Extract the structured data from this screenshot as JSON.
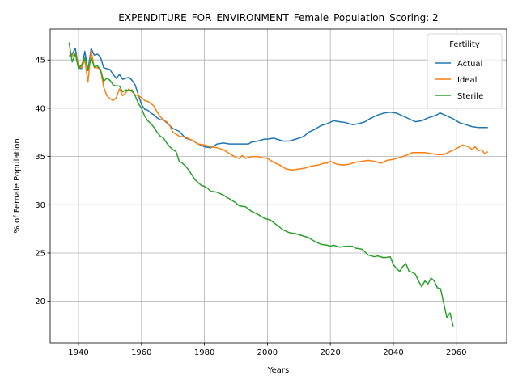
{
  "chart_data": {
    "type": "line",
    "title": "EXPENDITURE_FOR_ENVIRONMENT_Female_Population_Scoring: 2",
    "xlabel": "Years",
    "ylabel": "% of Female Population",
    "xlim": [
      1931,
      2076
    ],
    "ylim": [
      15.7,
      48.2
    ],
    "xticks": [
      1940,
      1960,
      1980,
      2000,
      2020,
      2040,
      2060
    ],
    "yticks": [
      20,
      25,
      30,
      35,
      40,
      45
    ],
    "grid": true,
    "legend": {
      "title": "Fertility",
      "placement": "top-right"
    },
    "series": [
      {
        "name": "Actual",
        "color": "#1f77b4",
        "points": [
          [
            1937,
            45.4
          ],
          [
            1938,
            45.6
          ],
          [
            1939,
            46.2
          ],
          [
            1940,
            44.2
          ],
          [
            1941,
            44.1
          ],
          [
            1942,
            45.9
          ],
          [
            1943,
            43.9
          ],
          [
            1944,
            46.2
          ],
          [
            1945,
            45.5
          ],
          [
            1946,
            45.6
          ],
          [
            1947,
            45.3
          ],
          [
            1948,
            44.2
          ],
          [
            1950,
            44.0
          ],
          [
            1951,
            43.5
          ],
          [
            1952,
            43.1
          ],
          [
            1953,
            43.5
          ],
          [
            1954,
            43.0
          ],
          [
            1955,
            43.1
          ],
          [
            1956,
            43.2
          ],
          [
            1957,
            42.9
          ],
          [
            1958,
            42.4
          ],
          [
            1959,
            41.4
          ],
          [
            1960,
            40.4
          ],
          [
            1961,
            39.9
          ],
          [
            1962,
            39.8
          ],
          [
            1963,
            39.5
          ],
          [
            1964,
            39.3
          ],
          [
            1965,
            39.0
          ],
          [
            1966,
            38.8
          ],
          [
            1967,
            38.8
          ],
          [
            1968,
            38.5
          ],
          [
            1970,
            37.9
          ],
          [
            1972,
            37.6
          ],
          [
            1974,
            36.9
          ],
          [
            1976,
            36.7
          ],
          [
            1978,
            36.3
          ],
          [
            1980,
            36.0
          ],
          [
            1982,
            35.9
          ],
          [
            1984,
            36.3
          ],
          [
            1986,
            36.4
          ],
          [
            1988,
            36.3
          ],
          [
            1990,
            36.3
          ],
          [
            1992,
            36.3
          ],
          [
            1994,
            36.3
          ],
          [
            1995,
            36.5
          ],
          [
            1997,
            36.6
          ],
          [
            1999,
            36.8
          ],
          [
            2000,
            36.8
          ],
          [
            2002,
            36.9
          ],
          [
            2003,
            36.8
          ],
          [
            2005,
            36.6
          ],
          [
            2007,
            36.6
          ],
          [
            2009,
            36.8
          ],
          [
            2011,
            37.0
          ],
          [
            2012,
            37.2
          ],
          [
            2013,
            37.5
          ],
          [
            2015,
            37.8
          ],
          [
            2017,
            38.2
          ],
          [
            2019,
            38.4
          ],
          [
            2021,
            38.7
          ],
          [
            2023,
            38.6
          ],
          [
            2025,
            38.5
          ],
          [
            2027,
            38.3
          ],
          [
            2029,
            38.4
          ],
          [
            2031,
            38.6
          ],
          [
            2033,
            39.0
          ],
          [
            2035,
            39.3
          ],
          [
            2037,
            39.5
          ],
          [
            2039,
            39.6
          ],
          [
            2041,
            39.5
          ],
          [
            2043,
            39.2
          ],
          [
            2045,
            38.9
          ],
          [
            2047,
            38.6
          ],
          [
            2049,
            38.7
          ],
          [
            2051,
            39.0
          ],
          [
            2053,
            39.2
          ],
          [
            2055,
            39.5
          ],
          [
            2057,
            39.2
          ],
          [
            2059,
            38.9
          ],
          [
            2061,
            38.5
          ],
          [
            2063,
            38.3
          ],
          [
            2065,
            38.1
          ],
          [
            2067,
            38.0
          ],
          [
            2069,
            38.0
          ],
          [
            2070,
            38.0
          ]
        ]
      },
      {
        "name": "Ideal",
        "color": "#ff7f0e",
        "points": [
          [
            1937,
            45.8
          ],
          [
            1938,
            45.4
          ],
          [
            1939,
            45.7
          ],
          [
            1940,
            44.5
          ],
          [
            1941,
            44.2
          ],
          [
            1942,
            45.0
          ],
          [
            1943,
            42.7
          ],
          [
            1944,
            46.0
          ],
          [
            1945,
            44.2
          ],
          [
            1946,
            44.2
          ],
          [
            1947,
            44.0
          ],
          [
            1948,
            42.2
          ],
          [
            1949,
            41.3
          ],
          [
            1950,
            41.0
          ],
          [
            1951,
            40.8
          ],
          [
            1952,
            41.1
          ],
          [
            1953,
            42.0
          ],
          [
            1954,
            41.3
          ],
          [
            1955,
            41.6
          ],
          [
            1956,
            42.0
          ],
          [
            1957,
            41.7
          ],
          [
            1958,
            41.4
          ],
          [
            1959,
            41.3
          ],
          [
            1960,
            41.1
          ],
          [
            1961,
            40.8
          ],
          [
            1962,
            40.7
          ],
          [
            1963,
            40.5
          ],
          [
            1964,
            40.2
          ],
          [
            1965,
            39.6
          ],
          [
            1966,
            39.1
          ],
          [
            1967,
            38.8
          ],
          [
            1968,
            38.6
          ],
          [
            1969,
            38.2
          ],
          [
            1970,
            37.5
          ],
          [
            1972,
            37.1
          ],
          [
            1974,
            37.0
          ],
          [
            1976,
            36.7
          ],
          [
            1978,
            36.3
          ],
          [
            1980,
            36.2
          ],
          [
            1982,
            36.0
          ],
          [
            1984,
            35.9
          ],
          [
            1986,
            35.7
          ],
          [
            1988,
            35.3
          ],
          [
            1990,
            34.9
          ],
          [
            1991,
            34.8
          ],
          [
            1992,
            35.1
          ],
          [
            1993,
            34.8
          ],
          [
            1995,
            35.0
          ],
          [
            1997,
            35.0
          ],
          [
            1998,
            34.9
          ],
          [
            2000,
            34.8
          ],
          [
            2002,
            34.4
          ],
          [
            2004,
            34.1
          ],
          [
            2006,
            33.7
          ],
          [
            2008,
            33.6
          ],
          [
            2010,
            33.7
          ],
          [
            2012,
            33.8
          ],
          [
            2014,
            34.0
          ],
          [
            2016,
            34.1
          ],
          [
            2018,
            34.3
          ],
          [
            2019,
            34.3
          ],
          [
            2020,
            34.5
          ],
          [
            2022,
            34.2
          ],
          [
            2024,
            34.1
          ],
          [
            2026,
            34.2
          ],
          [
            2028,
            34.4
          ],
          [
            2030,
            34.5
          ],
          [
            2032,
            34.6
          ],
          [
            2034,
            34.5
          ],
          [
            2036,
            34.3
          ],
          [
            2038,
            34.6
          ],
          [
            2040,
            34.7
          ],
          [
            2042,
            34.9
          ],
          [
            2044,
            35.1
          ],
          [
            2046,
            35.4
          ],
          [
            2048,
            35.4
          ],
          [
            2050,
            35.4
          ],
          [
            2052,
            35.3
          ],
          [
            2054,
            35.2
          ],
          [
            2056,
            35.2
          ],
          [
            2058,
            35.5
          ],
          [
            2060,
            35.8
          ],
          [
            2062,
            36.2
          ],
          [
            2064,
            36.0
          ],
          [
            2065,
            35.7
          ],
          [
            2066,
            36.0
          ],
          [
            2067,
            35.6
          ],
          [
            2068,
            35.7
          ],
          [
            2069,
            35.3
          ],
          [
            2070,
            35.5
          ]
        ]
      },
      {
        "name": "Sterile",
        "color": "#2ca02c",
        "points": [
          [
            1937,
            46.8
          ],
          [
            1938,
            44.8
          ],
          [
            1939,
            45.6
          ],
          [
            1940,
            44.1
          ],
          [
            1941,
            44.5
          ],
          [
            1942,
            45.2
          ],
          [
            1943,
            44.0
          ],
          [
            1944,
            45.2
          ],
          [
            1945,
            44.3
          ],
          [
            1946,
            44.4
          ],
          [
            1947,
            44.0
          ],
          [
            1948,
            42.8
          ],
          [
            1949,
            43.1
          ],
          [
            1950,
            42.9
          ],
          [
            1951,
            42.4
          ],
          [
            1952,
            42.3
          ],
          [
            1953,
            42.3
          ],
          [
            1954,
            41.7
          ],
          [
            1955,
            41.9
          ],
          [
            1956,
            41.8
          ],
          [
            1957,
            41.9
          ],
          [
            1958,
            41.3
          ],
          [
            1959,
            40.5
          ],
          [
            1960,
            40.0
          ],
          [
            1961,
            39.2
          ],
          [
            1962,
            38.7
          ],
          [
            1963,
            38.4
          ],
          [
            1964,
            38.0
          ],
          [
            1965,
            37.5
          ],
          [
            1966,
            37.1
          ],
          [
            1967,
            36.9
          ],
          [
            1968,
            36.4
          ],
          [
            1969,
            36.0
          ],
          [
            1970,
            35.7
          ],
          [
            1971,
            35.5
          ],
          [
            1972,
            34.5
          ],
          [
            1973,
            34.3
          ],
          [
            1974,
            34.0
          ],
          [
            1975,
            33.6
          ],
          [
            1976,
            33.1
          ],
          [
            1977,
            32.6
          ],
          [
            1978,
            32.3
          ],
          [
            1979,
            32.0
          ],
          [
            1980,
            31.9
          ],
          [
            1981,
            31.7
          ],
          [
            1982,
            31.4
          ],
          [
            1984,
            31.3
          ],
          [
            1986,
            31.0
          ],
          [
            1988,
            30.6
          ],
          [
            1990,
            30.2
          ],
          [
            1991,
            29.9
          ],
          [
            1993,
            29.8
          ],
          [
            1995,
            29.3
          ],
          [
            1997,
            29.0
          ],
          [
            1999,
            28.6
          ],
          [
            2001,
            28.4
          ],
          [
            2003,
            27.9
          ],
          [
            2005,
            27.4
          ],
          [
            2007,
            27.1
          ],
          [
            2009,
            27.0
          ],
          [
            2011,
            26.8
          ],
          [
            2013,
            26.6
          ],
          [
            2015,
            26.2
          ],
          [
            2017,
            25.9
          ],
          [
            2019,
            25.8
          ],
          [
            2020,
            25.7
          ],
          [
            2021,
            25.8
          ],
          [
            2023,
            25.6
          ],
          [
            2025,
            25.7
          ],
          [
            2027,
            25.7
          ],
          [
            2028,
            25.5
          ],
          [
            2030,
            25.4
          ],
          [
            2032,
            24.8
          ],
          [
            2034,
            24.6
          ],
          [
            2035,
            24.7
          ],
          [
            2037,
            24.5
          ],
          [
            2039,
            24.6
          ],
          [
            2040,
            23.8
          ],
          [
            2041,
            23.4
          ],
          [
            2042,
            23.1
          ],
          [
            2043,
            23.6
          ],
          [
            2044,
            23.9
          ],
          [
            2045,
            23.1
          ],
          [
            2046,
            23.0
          ],
          [
            2047,
            22.8
          ],
          [
            2048,
            22.1
          ],
          [
            2049,
            21.5
          ],
          [
            2050,
            22.1
          ],
          [
            2051,
            21.8
          ],
          [
            2052,
            22.4
          ],
          [
            2053,
            22.1
          ],
          [
            2054,
            21.4
          ],
          [
            2055,
            21.3
          ],
          [
            2056,
            19.8
          ],
          [
            2057,
            18.3
          ],
          [
            2058,
            18.8
          ],
          [
            2059,
            17.4
          ]
        ]
      }
    ]
  }
}
